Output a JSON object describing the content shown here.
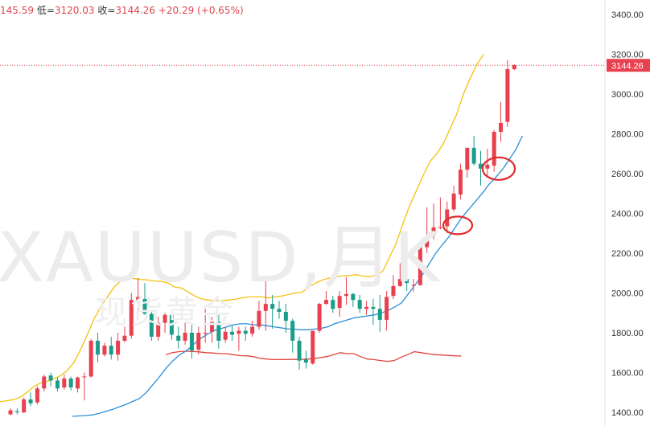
{
  "header": {
    "high_partial": "145.59",
    "low_label": "低=",
    "low_value": "3120.03",
    "close_label": "收=",
    "close_value": "3144.26",
    "change": "+20.29",
    "change_pct": "(+0.65%)"
  },
  "watermark": {
    "title": "XAUUSD,月K",
    "subtitle": "现货黄金"
  },
  "colors": {
    "up": "#e8404e",
    "down": "#1a9e8a",
    "ma_upper": "#f4c20d",
    "ma_mid": "#2b8fd6",
    "ma_lower": "#e0453a",
    "price_line": "#e8404e",
    "axis_text": "#333333",
    "price_tag_bg": "#e8404e",
    "price_tag_text": "#ffffff"
  },
  "chart_data": {
    "type": "candlestick",
    "title": "XAUUSD,月K",
    "y_ticks": [
      1400,
      1600,
      1800,
      2000,
      2200,
      2400,
      2600,
      2800,
      3000,
      3200,
      3400
    ],
    "y_tick_labels": [
      "1400.00",
      "1600.00",
      "1800.00",
      "2000.00",
      "2200.00",
      "2400.00",
      "2600.00",
      "2800.00",
      "3000.00",
      "3200.00",
      "3400.00"
    ],
    "ylim": [
      1373,
      3450
    ],
    "current_price": 3144.26,
    "current_price_label": "3144.26",
    "candles": [
      [
        1390,
        1420,
        1385,
        1410
      ],
      [
        1405,
        1420,
        1390,
        1400
      ],
      [
        1400,
        1475,
        1395,
        1465
      ],
      [
        1465,
        1500,
        1430,
        1445
      ],
      [
        1450,
        1530,
        1440,
        1520
      ],
      [
        1520,
        1590,
        1505,
        1580
      ],
      [
        1585,
        1600,
        1530,
        1560
      ],
      [
        1560,
        1575,
        1505,
        1520
      ],
      [
        1525,
        1590,
        1515,
        1570
      ],
      [
        1570,
        1580,
        1510,
        1525
      ],
      [
        1520,
        1580,
        1500,
        1575
      ],
      [
        1580,
        1600,
        1460,
        1580
      ],
      [
        1580,
        1770,
        1575,
        1760
      ],
      [
        1760,
        1800,
        1650,
        1690
      ],
      [
        1690,
        1750,
        1680,
        1735
      ],
      [
        1735,
        1780,
        1665,
        1690
      ],
      [
        1690,
        1800,
        1660,
        1760
      ],
      [
        1760,
        1830,
        1750,
        1785
      ],
      [
        1785,
        2000,
        1770,
        1965
      ],
      [
        1965,
        2075,
        1875,
        1980
      ],
      [
        1970,
        2050,
        1890,
        1895
      ],
      [
        1895,
        1910,
        1760,
        1780
      ],
      [
        1780,
        1880,
        1760,
        1850
      ],
      [
        1850,
        1900,
        1800,
        1890
      ],
      [
        1890,
        1910,
        1765,
        1790
      ],
      [
        1785,
        1830,
        1720,
        1760
      ],
      [
        1760,
        1850,
        1740,
        1800
      ],
      [
        1800,
        1850,
        1670,
        1710
      ],
      [
        1715,
        1830,
        1690,
        1800
      ],
      [
        1795,
        1920,
        1750,
        1800
      ],
      [
        1805,
        1880,
        1750,
        1855
      ],
      [
        1855,
        1890,
        1720,
        1760
      ],
      [
        1765,
        1830,
        1750,
        1805
      ],
      [
        1805,
        1840,
        1760,
        1790
      ],
      [
        1795,
        1830,
        1710,
        1810
      ],
      [
        1810,
        1830,
        1760,
        1795
      ],
      [
        1795,
        1860,
        1780,
        1830
      ],
      [
        1830,
        1960,
        1815,
        1910
      ],
      [
        1910,
        2070,
        1810,
        1945
      ],
      [
        1945,
        1990,
        1820,
        1920
      ],
      [
        1920,
        1960,
        1870,
        1905
      ],
      [
        1905,
        1945,
        1800,
        1860
      ],
      [
        1860,
        1870,
        1700,
        1760
      ],
      [
        1760,
        1780,
        1615,
        1660
      ],
      [
        1665,
        1710,
        1620,
        1650
      ],
      [
        1645,
        1810,
        1640,
        1810
      ],
      [
        1810,
        1950,
        1800,
        1945
      ],
      [
        1945,
        2010,
        1940,
        1965
      ],
      [
        1965,
        1985,
        1900,
        1920
      ],
      [
        1925,
        2010,
        1880,
        1985
      ],
      [
        1985,
        2080,
        1940,
        1995
      ],
      [
        1995,
        2000,
        1930,
        1965
      ],
      [
        1965,
        1990,
        1900,
        1920
      ],
      [
        1920,
        1960,
        1890,
        1930
      ],
      [
        1930,
        1970,
        1840,
        1920
      ],
      [
        1920,
        1990,
        1805,
        1865
      ],
      [
        1865,
        2010,
        1810,
        1980
      ],
      [
        1985,
        2090,
        1970,
        2035
      ],
      [
        2035,
        2150,
        2030,
        2070
      ],
      [
        2070,
        2130,
        2010,
        2050
      ],
      [
        2040,
        2070,
        2005,
        2040
      ],
      [
        2040,
        2250,
        2035,
        2230
      ],
      [
        2230,
        2430,
        2200,
        2285
      ],
      [
        2290,
        2450,
        2270,
        2330
      ],
      [
        2330,
        2480,
        2320,
        2330
      ],
      [
        2335,
        2460,
        2300,
        2420
      ],
      [
        2420,
        2540,
        2410,
        2500
      ],
      [
        2495,
        2650,
        2470,
        2620
      ],
      [
        2620,
        2730,
        2580,
        2730
      ],
      [
        2730,
        2790,
        2640,
        2650
      ],
      [
        2650,
        2715,
        2540,
        2625
      ],
      [
        2625,
        2725,
        2580,
        2645
      ],
      [
        2640,
        2820,
        2610,
        2810
      ],
      [
        2810,
        2960,
        2760,
        2855
      ],
      [
        2860,
        3170,
        2835,
        3125
      ],
      [
        3125,
        3150,
        3120,
        3145
      ]
    ],
    "ma_upper": [
      1453,
      1458,
      1464,
      1476,
      1500,
      1528,
      1547,
      1555,
      1568,
      1584,
      1610,
      1650,
      1715,
      1790,
      1870,
      1930,
      1980,
      2030,
      2060,
      2075,
      2072,
      2068,
      2065,
      2060,
      2058,
      2050,
      2030,
      2025,
      2005,
      1985,
      1970,
      1965,
      1960,
      1960,
      1965,
      1968,
      1975,
      1980,
      1980,
      1980,
      1975,
      1980,
      1985,
      1993,
      2000,
      2005,
      2030,
      2050,
      2065,
      2075,
      2080,
      2087,
      2087,
      2092,
      2085,
      2082,
      2090,
      2110,
      2180,
      2250,
      2350,
      2440,
      2515,
      2590,
      2660,
      2700,
      2750,
      2825,
      2900,
      3000,
      3080,
      3150,
      3200
    ],
    "ma_mid": [
      1380,
      1382,
      1384,
      1387,
      1395,
      1405,
      1415,
      1428,
      1440,
      1455,
      1470,
      1500,
      1540,
      1580,
      1625,
      1660,
      1690,
      1710,
      1740,
      1770,
      1790,
      1810,
      1820,
      1830,
      1840,
      1845,
      1845,
      1840,
      1840,
      1835,
      1830,
      1825,
      1820,
      1818,
      1815,
      1815,
      1818,
      1822,
      1830,
      1845,
      1855,
      1865,
      1875,
      1880,
      1885,
      1890,
      1900,
      1912,
      1930,
      1950,
      1995,
      2040,
      2085,
      2140,
      2195,
      2240,
      2280,
      2330,
      2380,
      2420,
      2460,
      2500,
      2545,
      2580,
      2620,
      2670,
      2720,
      2790
    ],
    "ma_lower": [
      1690,
      1700,
      1705,
      1707,
      1706,
      1704,
      1700,
      1698,
      1695,
      1695,
      1690,
      1685,
      1684,
      1680,
      1672,
      1668,
      1665,
      1665,
      1666,
      1666,
      1665,
      1668,
      1670,
      1675,
      1680,
      1690,
      1700,
      1695,
      1695,
      1680,
      1668,
      1665,
      1660,
      1656,
      1660,
      1676,
      1690,
      1705,
      1700,
      1695,
      1690,
      1688,
      1686,
      1684,
      1683
    ],
    "ma_lower_start_x": 206
  }
}
